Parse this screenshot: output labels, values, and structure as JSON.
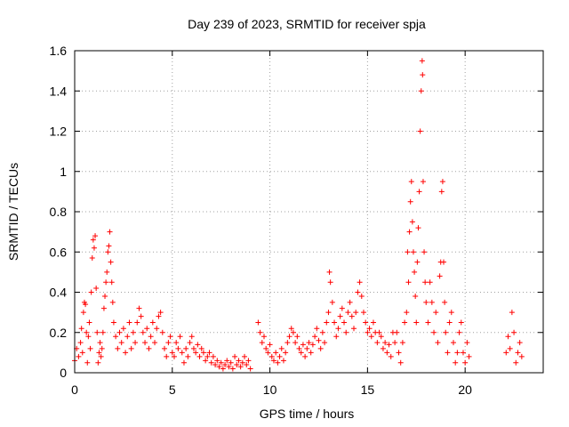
{
  "chart_data": {
    "type": "scatter",
    "title": "Day 239 of 2023, SRMTID for receiver spja",
    "xlabel": "GPS time / hours",
    "ylabel": "SRMTID / TECUs",
    "xlim": [
      0,
      24
    ],
    "ylim": [
      0,
      1.6
    ],
    "xticks": [
      0,
      5,
      10,
      15,
      20
    ],
    "xtick_labels": [
      "0",
      "5",
      "10",
      "15",
      "20"
    ],
    "yticks": [
      0,
      0.2,
      0.4,
      0.6,
      0.8,
      1,
      1.2,
      1.4,
      1.6
    ],
    "ytick_labels": [
      "0",
      "0.2",
      "0.4",
      "0.6",
      "0.8",
      "1",
      "1.2",
      "1.4",
      "1.6"
    ],
    "grid": true,
    "marker": "plus",
    "color": "#ff0000",
    "series": [
      {
        "name": "SRMTID",
        "points": [
          [
            0.0,
            0.06
          ],
          [
            0.1,
            0.12
          ],
          [
            0.2,
            0.08
          ],
          [
            0.3,
            0.15
          ],
          [
            0.35,
            0.22
          ],
          [
            0.4,
            0.1
          ],
          [
            0.45,
            0.3
          ],
          [
            0.5,
            0.35
          ],
          [
            0.55,
            0.34
          ],
          [
            0.6,
            0.2
          ],
          [
            0.65,
            0.05
          ],
          [
            0.7,
            0.18
          ],
          [
            0.75,
            0.25
          ],
          [
            0.8,
            0.12
          ],
          [
            0.85,
            0.4
          ],
          [
            0.9,
            0.57
          ],
          [
            0.95,
            0.66
          ],
          [
            1.0,
            0.62
          ],
          [
            1.05,
            0.68
          ],
          [
            1.1,
            0.42
          ],
          [
            1.15,
            0.2
          ],
          [
            1.2,
            0.05
          ],
          [
            1.25,
            0.1
          ],
          [
            1.3,
            0.15
          ],
          [
            1.35,
            0.08
          ],
          [
            1.4,
            0.12
          ],
          [
            1.45,
            0.2
          ],
          [
            1.5,
            0.32
          ],
          [
            1.55,
            0.38
          ],
          [
            1.6,
            0.45
          ],
          [
            1.65,
            0.5
          ],
          [
            1.7,
            0.6
          ],
          [
            1.75,
            0.63
          ],
          [
            1.8,
            0.7
          ],
          [
            1.85,
            0.55
          ],
          [
            1.9,
            0.45
          ],
          [
            1.95,
            0.35
          ],
          [
            2.0,
            0.25
          ],
          [
            2.1,
            0.18
          ],
          [
            2.2,
            0.12
          ],
          [
            2.3,
            0.2
          ],
          [
            2.4,
            0.15
          ],
          [
            2.5,
            0.22
          ],
          [
            2.6,
            0.1
          ],
          [
            2.7,
            0.18
          ],
          [
            2.8,
            0.25
          ],
          [
            2.9,
            0.12
          ],
          [
            3.0,
            0.2
          ],
          [
            3.1,
            0.15
          ],
          [
            3.2,
            0.25
          ],
          [
            3.3,
            0.32
          ],
          [
            3.4,
            0.28
          ],
          [
            3.5,
            0.2
          ],
          [
            3.6,
            0.15
          ],
          [
            3.7,
            0.22
          ],
          [
            3.8,
            0.12
          ],
          [
            3.9,
            0.18
          ],
          [
            4.0,
            0.25
          ],
          [
            4.1,
            0.15
          ],
          [
            4.2,
            0.22
          ],
          [
            4.3,
            0.28
          ],
          [
            4.4,
            0.3
          ],
          [
            4.5,
            0.2
          ],
          [
            4.6,
            0.12
          ],
          [
            4.7,
            0.08
          ],
          [
            4.8,
            0.15
          ],
          [
            4.9,
            0.18
          ],
          [
            5.0,
            0.1
          ],
          [
            5.1,
            0.08
          ],
          [
            5.2,
            0.15
          ],
          [
            5.3,
            0.12
          ],
          [
            5.4,
            0.18
          ],
          [
            5.5,
            0.1
          ],
          [
            5.6,
            0.05
          ],
          [
            5.7,
            0.12
          ],
          [
            5.8,
            0.08
          ],
          [
            5.9,
            0.15
          ],
          [
            6.0,
            0.18
          ],
          [
            6.1,
            0.12
          ],
          [
            6.2,
            0.1
          ],
          [
            6.3,
            0.14
          ],
          [
            6.4,
            0.08
          ],
          [
            6.5,
            0.12
          ],
          [
            6.6,
            0.1
          ],
          [
            6.7,
            0.06
          ],
          [
            6.8,
            0.08
          ],
          [
            6.9,
            0.1
          ],
          [
            7.0,
            0.05
          ],
          [
            7.1,
            0.08
          ],
          [
            7.2,
            0.04
          ],
          [
            7.3,
            0.06
          ],
          [
            7.4,
            0.03
          ],
          [
            7.5,
            0.05
          ],
          [
            7.6,
            0.02
          ],
          [
            7.7,
            0.04
          ],
          [
            7.8,
            0.06
          ],
          [
            7.9,
            0.03
          ],
          [
            8.0,
            0.05
          ],
          [
            8.1,
            0.02
          ],
          [
            8.2,
            0.08
          ],
          [
            8.3,
            0.04
          ],
          [
            8.4,
            0.06
          ],
          [
            8.5,
            0.03
          ],
          [
            8.6,
            0.05
          ],
          [
            8.7,
            0.08
          ],
          [
            8.8,
            0.04
          ],
          [
            8.9,
            0.06
          ],
          [
            9.0,
            0.02
          ],
          [
            9.4,
            0.25
          ],
          [
            9.5,
            0.2
          ],
          [
            9.6,
            0.15
          ],
          [
            9.7,
            0.18
          ],
          [
            9.8,
            0.12
          ],
          [
            9.9,
            0.1
          ],
          [
            10.0,
            0.14
          ],
          [
            10.1,
            0.08
          ],
          [
            10.2,
            0.06
          ],
          [
            10.3,
            0.1
          ],
          [
            10.4,
            0.05
          ],
          [
            10.5,
            0.08
          ],
          [
            10.6,
            0.12
          ],
          [
            10.7,
            0.06
          ],
          [
            10.8,
            0.1
          ],
          [
            10.9,
            0.15
          ],
          [
            11.0,
            0.18
          ],
          [
            11.1,
            0.22
          ],
          [
            11.2,
            0.2
          ],
          [
            11.3,
            0.15
          ],
          [
            11.4,
            0.18
          ],
          [
            11.5,
            0.12
          ],
          [
            11.6,
            0.1
          ],
          [
            11.7,
            0.14
          ],
          [
            11.8,
            0.08
          ],
          [
            11.9,
            0.12
          ],
          [
            12.0,
            0.15
          ],
          [
            12.1,
            0.1
          ],
          [
            12.2,
            0.14
          ],
          [
            12.3,
            0.18
          ],
          [
            12.4,
            0.22
          ],
          [
            12.5,
            0.16
          ],
          [
            12.6,
            0.12
          ],
          [
            12.7,
            0.2
          ],
          [
            12.8,
            0.15
          ],
          [
            12.9,
            0.25
          ],
          [
            13.0,
            0.3
          ],
          [
            13.05,
            0.5
          ],
          [
            13.1,
            0.45
          ],
          [
            13.2,
            0.35
          ],
          [
            13.3,
            0.25
          ],
          [
            13.4,
            0.18
          ],
          [
            13.5,
            0.22
          ],
          [
            13.6,
            0.28
          ],
          [
            13.7,
            0.32
          ],
          [
            13.8,
            0.25
          ],
          [
            13.9,
            0.2
          ],
          [
            14.0,
            0.3
          ],
          [
            14.1,
            0.35
          ],
          [
            14.2,
            0.28
          ],
          [
            14.3,
            0.22
          ],
          [
            14.4,
            0.3
          ],
          [
            14.5,
            0.4
          ],
          [
            14.6,
            0.45
          ],
          [
            14.7,
            0.38
          ],
          [
            14.8,
            0.3
          ],
          [
            14.9,
            0.25
          ],
          [
            15.0,
            0.2
          ],
          [
            15.1,
            0.22
          ],
          [
            15.2,
            0.18
          ],
          [
            15.3,
            0.25
          ],
          [
            15.4,
            0.2
          ],
          [
            15.5,
            0.15
          ],
          [
            15.6,
            0.2
          ],
          [
            15.7,
            0.18
          ],
          [
            15.8,
            0.12
          ],
          [
            15.9,
            0.15
          ],
          [
            16.0,
            0.1
          ],
          [
            16.1,
            0.14
          ],
          [
            16.2,
            0.08
          ],
          [
            16.3,
            0.2
          ],
          [
            16.4,
            0.15
          ],
          [
            16.5,
            0.2
          ],
          [
            16.6,
            0.1
          ],
          [
            16.7,
            0.05
          ],
          [
            16.8,
            0.15
          ],
          [
            16.9,
            0.25
          ],
          [
            17.0,
            0.3
          ],
          [
            17.05,
            0.6
          ],
          [
            17.1,
            0.45
          ],
          [
            17.15,
            0.7
          ],
          [
            17.2,
            0.85
          ],
          [
            17.25,
            0.95
          ],
          [
            17.3,
            0.75
          ],
          [
            17.35,
            0.6
          ],
          [
            17.4,
            0.5
          ],
          [
            17.45,
            0.38
          ],
          [
            17.5,
            0.25
          ],
          [
            17.55,
            0.55
          ],
          [
            17.6,
            0.72
          ],
          [
            17.65,
            0.9
          ],
          [
            17.7,
            1.2
          ],
          [
            17.75,
            1.4
          ],
          [
            17.8,
            1.55
          ],
          [
            17.82,
            1.48
          ],
          [
            17.85,
            0.95
          ],
          [
            17.9,
            0.6
          ],
          [
            17.95,
            0.45
          ],
          [
            18.0,
            0.35
          ],
          [
            18.1,
            0.25
          ],
          [
            18.2,
            0.45
          ],
          [
            18.3,
            0.35
          ],
          [
            18.4,
            0.2
          ],
          [
            18.5,
            0.3
          ],
          [
            18.6,
            0.15
          ],
          [
            18.7,
            0.48
          ],
          [
            18.75,
            0.55
          ],
          [
            18.8,
            0.9
          ],
          [
            18.85,
            0.95
          ],
          [
            18.9,
            0.55
          ],
          [
            18.95,
            0.35
          ],
          [
            19.0,
            0.2
          ],
          [
            19.1,
            0.1
          ],
          [
            19.2,
            0.25
          ],
          [
            19.3,
            0.3
          ],
          [
            19.4,
            0.15
          ],
          [
            19.5,
            0.05
          ],
          [
            19.6,
            0.1
          ],
          [
            19.7,
            0.2
          ],
          [
            19.8,
            0.25
          ],
          [
            19.9,
            0.1
          ],
          [
            20.0,
            0.05
          ],
          [
            20.1,
            0.15
          ],
          [
            20.2,
            0.08
          ],
          [
            22.1,
            0.1
          ],
          [
            22.2,
            0.18
          ],
          [
            22.3,
            0.12
          ],
          [
            22.4,
            0.3
          ],
          [
            22.5,
            0.2
          ],
          [
            22.6,
            0.05
          ],
          [
            22.7,
            0.1
          ],
          [
            22.8,
            0.15
          ],
          [
            22.9,
            0.08
          ]
        ]
      }
    ]
  }
}
